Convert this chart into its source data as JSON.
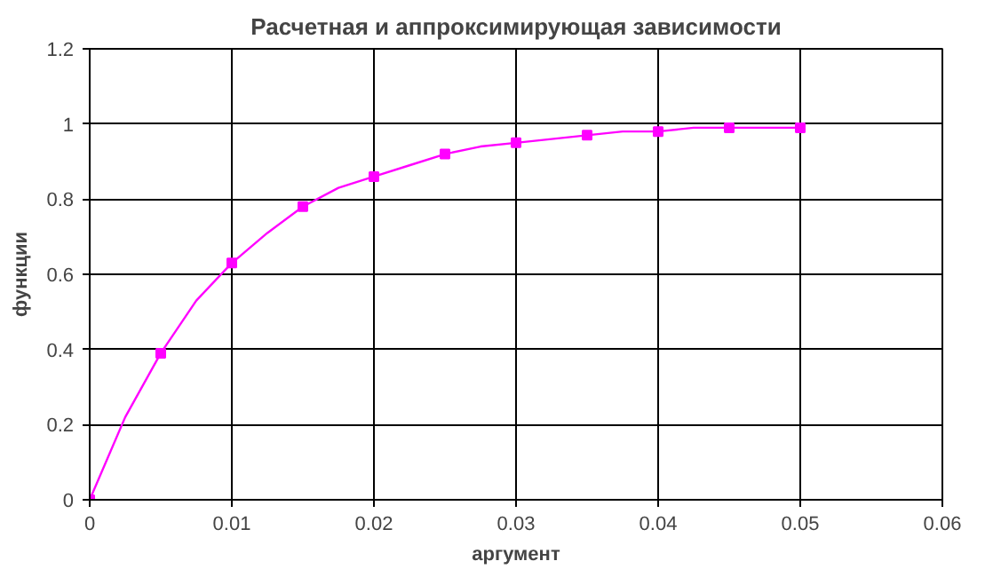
{
  "chart_data": {
    "type": "line",
    "title": "Расчетная и аппроксимирующая зависимости",
    "xlabel": "аргумент",
    "ylabel": "функции",
    "xlim": [
      0,
      0.06
    ],
    "xticks": [
      0,
      0.01,
      0.02,
      0.03,
      0.04,
      0.05,
      0.06
    ],
    "ylim": [
      0,
      1.2
    ],
    "yticks": [
      0,
      0.2,
      0.4,
      0.6,
      0.8,
      1,
      1.2
    ],
    "grid": true,
    "series": [
      {
        "marker": "none",
        "color": "#ff00ff",
        "x": [
          0,
          0.0025,
          0.005,
          0.0075,
          0.01,
          0.0125,
          0.015,
          0.0175,
          0.02,
          0.0225,
          0.025,
          0.0275,
          0.03,
          0.0325,
          0.035,
          0.0375,
          0.04,
          0.0425,
          0.045,
          0.0475,
          0.05
        ],
        "values": [
          0,
          0.22,
          0.39,
          0.53,
          0.63,
          0.71,
          0.78,
          0.83,
          0.86,
          0.89,
          0.92,
          0.94,
          0.95,
          0.96,
          0.97,
          0.98,
          0.98,
          0.99,
          0.99,
          0.99,
          0.99
        ]
      },
      {
        "type": "scatter",
        "marker": "square",
        "color": "#ff00ff",
        "x": [
          0,
          0.005,
          0.01,
          0.015,
          0.02,
          0.025,
          0.03,
          0.035,
          0.04,
          0.045,
          0.05
        ],
        "values": [
          0,
          0.39,
          0.63,
          0.78,
          0.86,
          0.92,
          0.95,
          0.97,
          0.98,
          0.99,
          0.99
        ]
      }
    ]
  }
}
